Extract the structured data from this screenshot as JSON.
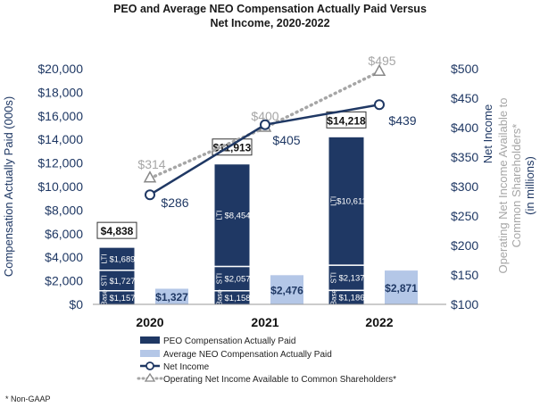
{
  "chart_data": {
    "type": "bar",
    "title_line1": "PEO and Average NEO Compensation Actually Paid Versus",
    "title_line2": "Net Income, 2020-2022",
    "categories": [
      "2020",
      "2021",
      "2022"
    ],
    "y_left": {
      "label": "Compensation Actually Paid (000s)",
      "ylim": [
        0,
        20000
      ],
      "ticks": [
        "$0",
        "$2,000",
        "$4,000",
        "$6,000",
        "$8,000",
        "$10,000",
        "$12,000",
        "$14,000",
        "$16,000",
        "$18,000",
        "$20,000"
      ]
    },
    "y_right": {
      "label_net_income": "Net Income",
      "label_operating_lines": [
        "Operating Net Income Available to",
        "Common Shareholders*",
        "(in millions)"
      ],
      "ylim": [
        100,
        500
      ],
      "ticks": [
        "$100",
        "$150",
        "$200",
        "$250",
        "$300",
        "$350",
        "$400",
        "$450",
        "$500"
      ]
    },
    "peo_stacks": [
      {
        "base": 1157,
        "sti": 1727,
        "lti": 1689,
        "total": 4838,
        "base_label": "$1,157",
        "sti_label": "$1,727",
        "lti_label": "$1,689",
        "total_label": "$4,838"
      },
      {
        "base": 1158,
        "sti": 2057,
        "lti": 8454,
        "total": 11913,
        "base_label": "$1,158",
        "sti_label": "$2,057",
        "lti_label": "$8,454",
        "total_label": "$11,913"
      },
      {
        "base": 1186,
        "sti": 2137,
        "lti": 10611,
        "total": 14218,
        "base_label": "$1,186",
        "sti_label": "$2,137",
        "lti_label": "$10,611",
        "total_label": "$14,218"
      }
    ],
    "segment_labels": {
      "base": "Base",
      "sti": "STI",
      "lti": "LTI"
    },
    "neo_values": [
      1327,
      2476,
      2871
    ],
    "neo_labels": [
      "$1,327",
      "$2,476",
      "$2,871"
    ],
    "net_income": [
      286,
      405,
      439
    ],
    "net_income_labels": [
      "$286",
      "$405",
      "$439"
    ],
    "operating_net_income": [
      314,
      400,
      495
    ],
    "operating_labels": [
      "$314",
      "$400",
      "$495"
    ],
    "legend": [
      "PEO Compensation Actually Paid",
      "Average NEO Compensation Actually Paid",
      "Net Income",
      "Operating Net Income Available to Common Shareholders*"
    ],
    "colors": {
      "peo": "#1f3864",
      "neo": "#b4c7e7",
      "net_income": "#1f3864",
      "operating": "#a6a6a6",
      "text_dark": "#1f3864",
      "text_gray": "#a6a6a6"
    }
  },
  "footnote": "* Non-GAAP"
}
